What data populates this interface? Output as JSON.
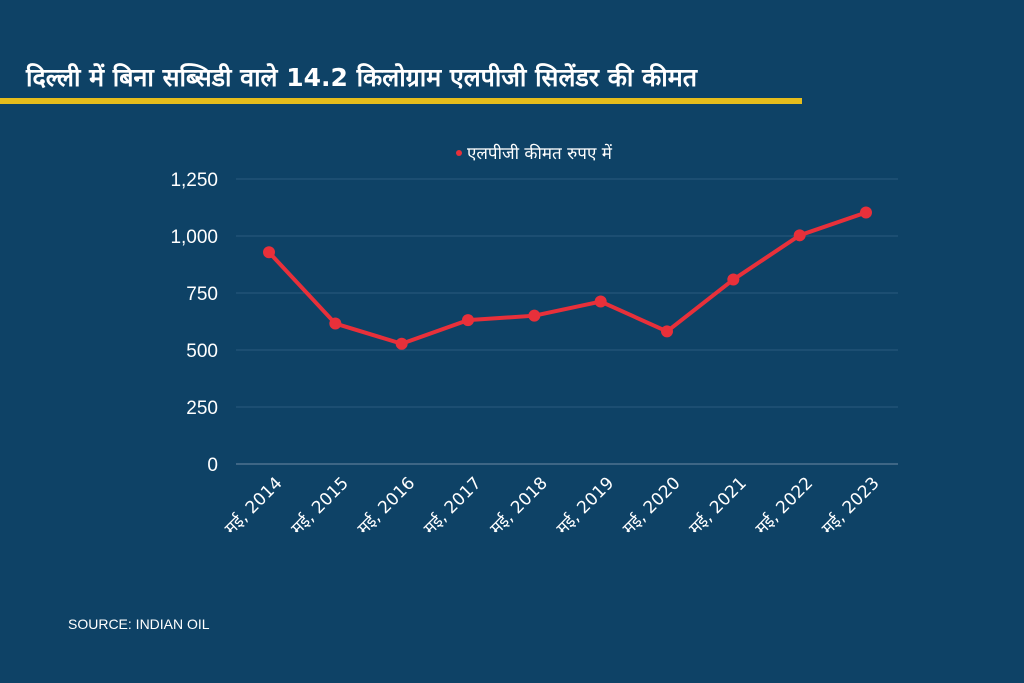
{
  "title": "दिल्ली में बिना सब्सिडी वाले 14.2 किलोग्राम एलपीजी सिलेंडर की कीमत",
  "source": "SOURCE: INDIAN OIL",
  "colors": {
    "background": "#0e4266",
    "accent_rule": "#e6bd1c",
    "series": "#e8303a",
    "grid": "#2a5a7e"
  },
  "chart_data": {
    "type": "line",
    "title": "दिल्ली में बिना सब्सिडी वाले 14.2 किलोग्राम एलपीजी सिलेंडर की कीमत",
    "categories": [
      "मई, 2014",
      "मई, 2015",
      "मई, 2016",
      "मई, 2017",
      "मई, 2018",
      "मई, 2019",
      "मई, 2020",
      "मई, 2021",
      "मई, 2022",
      "मई, 2023"
    ],
    "series": [
      {
        "name": "एलपीजी कीमत रुपए में",
        "values": [
          928.5,
          616,
          527.5,
          631,
          650.5,
          712.5,
          581.5,
          809,
          1003,
          1103
        ]
      }
    ],
    "ylim": [
      0,
      1250
    ],
    "yticks": [
      0,
      250,
      500,
      750,
      1000,
      1250
    ],
    "ytick_labels": [
      "0",
      "250",
      "500",
      "750",
      "1,000",
      "1,250"
    ],
    "grid": true,
    "legend": "top-center",
    "xlabel": "",
    "ylabel": ""
  }
}
